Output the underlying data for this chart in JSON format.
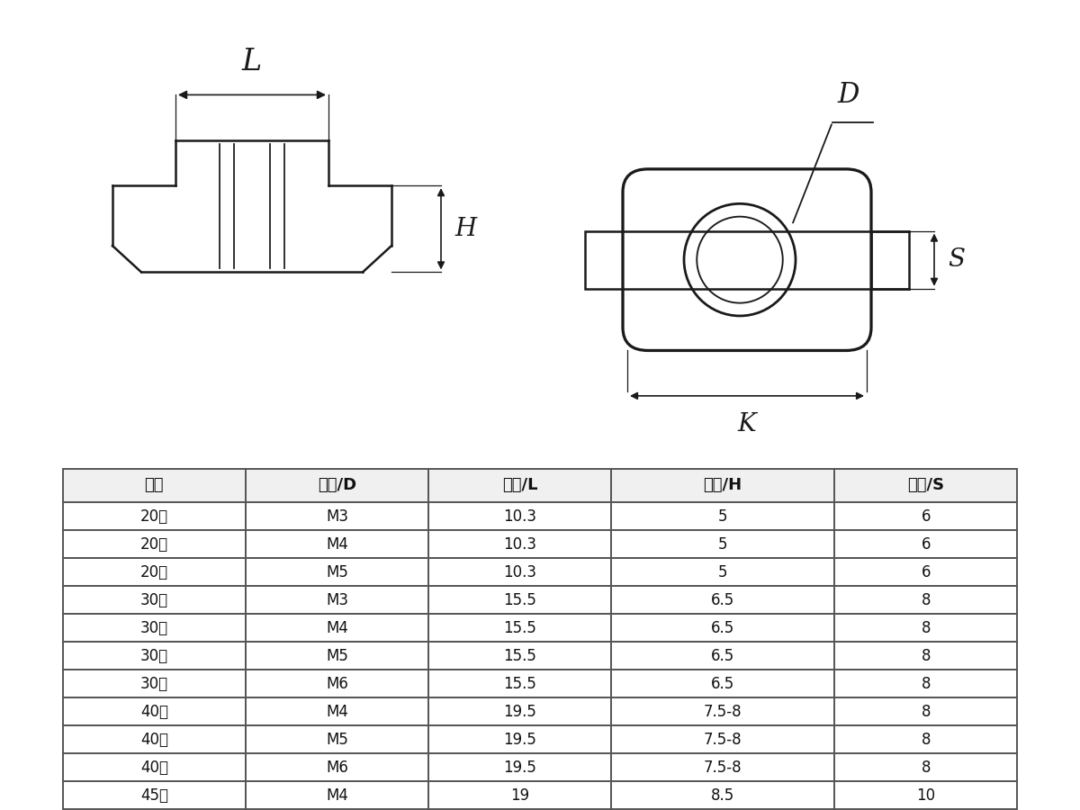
{
  "title": "",
  "table_headers": [
    "型号",
    "规格/D",
    "长度/L",
    "高度/H",
    "宽度/S"
  ],
  "table_data": [
    [
      "20型",
      "M3",
      "10.3",
      "5",
      "6"
    ],
    [
      "20型",
      "M4",
      "10.3",
      "5",
      "6"
    ],
    [
      "20型",
      "M5",
      "10.3",
      "5",
      "6"
    ],
    [
      "30型",
      "M3",
      "15.5",
      "6.5",
      "8"
    ],
    [
      "30型",
      "M4",
      "15.5",
      "6.5",
      "8"
    ],
    [
      "30型",
      "M5",
      "15.5",
      "6.5",
      "8"
    ],
    [
      "30型",
      "M6",
      "15.5",
      "6.5",
      "8"
    ],
    [
      "40型",
      "M4",
      "19.5",
      "7.5-8",
      "8"
    ],
    [
      "40型",
      "M5",
      "19.5",
      "7.5-8",
      "8"
    ],
    [
      "40型",
      "M6",
      "19.5",
      "7.5-8",
      "8"
    ],
    [
      "45型",
      "M4",
      "19",
      "8.5",
      "10"
    ]
  ],
  "bg_color": "#ffffff",
  "line_color": "#1a1a1a",
  "text_color": "#1a1a1a"
}
